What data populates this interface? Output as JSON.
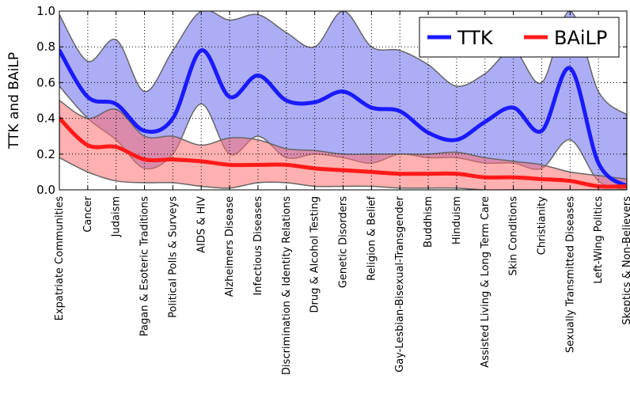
{
  "chart_data": {
    "type": "line",
    "title": "",
    "xlabel": "",
    "ylabel": "TTK and BAiLP",
    "ylim": [
      0,
      1.0
    ],
    "yticks": [
      "0.0",
      "0.2",
      "0.4",
      "0.6",
      "0.8",
      "1.0"
    ],
    "grid": true,
    "legend_position": "top-right",
    "categories": [
      "Expatriate Communities",
      "Cancer",
      "Judaism",
      "Pagan & Esoteric Traditions",
      "Political Polls & Surveys",
      "AIDS & HIV",
      "Alzheimers Disease",
      "Infectious Diseases",
      "Discrimination & Identity Relations",
      "Drug & Alcohol Testing",
      "Genetic Disorders",
      "Religion & Belief",
      "Gay-Lesbian-Bisexual-Transgender",
      "Buddhism",
      "Hinduism",
      "Assisted Living & Long Term Care",
      "Skin Conditions",
      "Christianity",
      "Sexually Transmitted Diseases",
      "Left-Wing Politics",
      "Skeptics & Non-Believers"
    ],
    "series": [
      {
        "name": "TTK",
        "color": "#1a1aff",
        "band_color": "#6a6aee",
        "values": [
          0.78,
          0.52,
          0.48,
          0.33,
          0.4,
          0.78,
          0.52,
          0.64,
          0.5,
          0.49,
          0.55,
          0.46,
          0.44,
          0.32,
          0.28,
          0.38,
          0.46,
          0.33,
          0.68,
          0.15,
          0.02
        ],
        "upper": [
          0.98,
          0.72,
          0.84,
          0.55,
          0.78,
          1.0,
          0.95,
          0.98,
          0.88,
          0.8,
          1.0,
          0.8,
          0.78,
          0.7,
          0.58,
          0.65,
          0.78,
          0.6,
          1.0,
          0.55,
          0.42
        ],
        "lower": [
          0.58,
          0.4,
          0.28,
          0.12,
          0.2,
          0.48,
          0.2,
          0.3,
          0.18,
          0.2,
          0.18,
          0.15,
          0.2,
          0.18,
          0.18,
          0.15,
          0.15,
          0.12,
          0.28,
          0.05,
          0.0
        ]
      },
      {
        "name": "BAiLP",
        "color": "#ff1a1a",
        "band_color": "#ff7070",
        "values": [
          0.4,
          0.25,
          0.24,
          0.17,
          0.17,
          0.16,
          0.14,
          0.14,
          0.14,
          0.12,
          0.11,
          0.1,
          0.09,
          0.09,
          0.09,
          0.07,
          0.07,
          0.06,
          0.05,
          0.02,
          0.02
        ],
        "upper": [
          0.5,
          0.4,
          0.45,
          0.3,
          0.3,
          0.25,
          0.29,
          0.28,
          0.23,
          0.22,
          0.2,
          0.2,
          0.2,
          0.2,
          0.21,
          0.18,
          0.16,
          0.14,
          0.1,
          0.08,
          0.06
        ],
        "lower": [
          0.18,
          0.1,
          0.05,
          0.04,
          0.04,
          0.02,
          0.01,
          0.04,
          0.04,
          0.02,
          0.02,
          0.02,
          0.01,
          0.01,
          0.01,
          0.0,
          0.0,
          0.0,
          0.0,
          0.0,
          0.0
        ]
      }
    ]
  }
}
